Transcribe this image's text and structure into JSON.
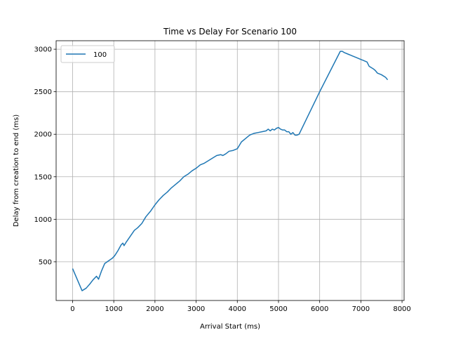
{
  "chart_data": {
    "type": "line",
    "title": "Time vs Delay For Scenario 100",
    "xlabel": "Arrival Start (ms)",
    "ylabel": "Delay from creation to end (ms)",
    "xlim": [
      -400,
      8050
    ],
    "ylim": [
      45,
      3100
    ],
    "xticks": [
      0,
      1000,
      2000,
      3000,
      4000,
      5000,
      6000,
      7000,
      8000
    ],
    "yticks": [
      500,
      1000,
      1500,
      2000,
      2500,
      3000
    ],
    "grid": true,
    "legend": {
      "position": "top-left"
    },
    "series": [
      {
        "name": "100",
        "color": "#1f77b4",
        "x": [
          0,
          230,
          330,
          420,
          500,
          580,
          630,
          700,
          780,
          870,
          960,
          1020,
          1100,
          1180,
          1220,
          1250,
          1300,
          1400,
          1500,
          1580,
          1680,
          1780,
          1900,
          2000,
          2100,
          2200,
          2300,
          2400,
          2500,
          2600,
          2700,
          2800,
          2900,
          3000,
          3100,
          3200,
          3300,
          3400,
          3500,
          3600,
          3650,
          3720,
          3800,
          3900,
          4000,
          4050,
          4100,
          4200,
          4300,
          4400,
          4500,
          4600,
          4700,
          4750,
          4800,
          4850,
          4900,
          4950,
          5000,
          5050,
          5100,
          5150,
          5200,
          5250,
          5300,
          5350,
          5400,
          5450,
          5500,
          6000,
          6500,
          6550,
          6600,
          6700,
          6750,
          6800,
          6900,
          7000,
          7050,
          7100,
          7150,
          7200,
          7300,
          7350,
          7400,
          7500,
          7600,
          7650
        ],
        "y": [
          420,
          160,
          190,
          240,
          290,
          330,
          295,
          390,
          480,
          510,
          540,
          570,
          630,
          700,
          720,
          690,
          730,
          800,
          870,
          900,
          950,
          1030,
          1100,
          1170,
          1230,
          1280,
          1320,
          1370,
          1410,
          1450,
          1500,
          1530,
          1570,
          1600,
          1640,
          1660,
          1690,
          1720,
          1750,
          1760,
          1750,
          1770,
          1800,
          1810,
          1830,
          1870,
          1910,
          1950,
          1990,
          2010,
          2020,
          2030,
          2040,
          2060,
          2040,
          2060,
          2050,
          2070,
          2080,
          2060,
          2050,
          2050,
          2030,
          2030,
          2000,
          2020,
          1990,
          1990,
          2000,
          2500,
          2975,
          2975,
          2960,
          2940,
          2930,
          2920,
          2900,
          2880,
          2870,
          2860,
          2850,
          2800,
          2770,
          2750,
          2720,
          2700,
          2670,
          2640
        ]
      }
    ]
  }
}
